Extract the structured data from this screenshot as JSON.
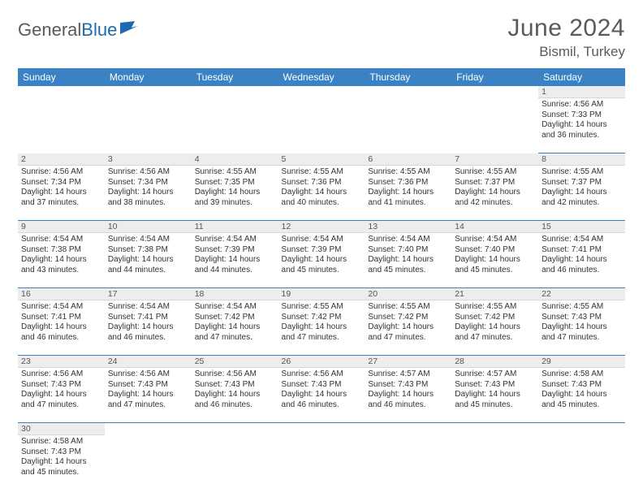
{
  "brand": {
    "part1": "General",
    "part2": "Blue"
  },
  "title": "June 2024",
  "location": "Bismil, Turkey",
  "colors": {
    "header_bg": "#3b82c4",
    "header_text": "#ffffff",
    "daynum_bg": "#ededed",
    "row_border": "#3b82c4",
    "text": "#333333",
    "title_color": "#5a5a5a"
  },
  "daysOfWeek": [
    "Sunday",
    "Monday",
    "Tuesday",
    "Wednesday",
    "Thursday",
    "Friday",
    "Saturday"
  ],
  "weeks": [
    [
      null,
      null,
      null,
      null,
      null,
      null,
      {
        "n": "1",
        "sr": "4:56 AM",
        "ss": "7:33 PM",
        "dl": "14 hours and 36 minutes."
      }
    ],
    [
      {
        "n": "2",
        "sr": "4:56 AM",
        "ss": "7:34 PM",
        "dl": "14 hours and 37 minutes."
      },
      {
        "n": "3",
        "sr": "4:56 AM",
        "ss": "7:34 PM",
        "dl": "14 hours and 38 minutes."
      },
      {
        "n": "4",
        "sr": "4:55 AM",
        "ss": "7:35 PM",
        "dl": "14 hours and 39 minutes."
      },
      {
        "n": "5",
        "sr": "4:55 AM",
        "ss": "7:36 PM",
        "dl": "14 hours and 40 minutes."
      },
      {
        "n": "6",
        "sr": "4:55 AM",
        "ss": "7:36 PM",
        "dl": "14 hours and 41 minutes."
      },
      {
        "n": "7",
        "sr": "4:55 AM",
        "ss": "7:37 PM",
        "dl": "14 hours and 42 minutes."
      },
      {
        "n": "8",
        "sr": "4:55 AM",
        "ss": "7:37 PM",
        "dl": "14 hours and 42 minutes."
      }
    ],
    [
      {
        "n": "9",
        "sr": "4:54 AM",
        "ss": "7:38 PM",
        "dl": "14 hours and 43 minutes."
      },
      {
        "n": "10",
        "sr": "4:54 AM",
        "ss": "7:38 PM",
        "dl": "14 hours and 44 minutes."
      },
      {
        "n": "11",
        "sr": "4:54 AM",
        "ss": "7:39 PM",
        "dl": "14 hours and 44 minutes."
      },
      {
        "n": "12",
        "sr": "4:54 AM",
        "ss": "7:39 PM",
        "dl": "14 hours and 45 minutes."
      },
      {
        "n": "13",
        "sr": "4:54 AM",
        "ss": "7:40 PM",
        "dl": "14 hours and 45 minutes."
      },
      {
        "n": "14",
        "sr": "4:54 AM",
        "ss": "7:40 PM",
        "dl": "14 hours and 45 minutes."
      },
      {
        "n": "15",
        "sr": "4:54 AM",
        "ss": "7:41 PM",
        "dl": "14 hours and 46 minutes."
      }
    ],
    [
      {
        "n": "16",
        "sr": "4:54 AM",
        "ss": "7:41 PM",
        "dl": "14 hours and 46 minutes."
      },
      {
        "n": "17",
        "sr": "4:54 AM",
        "ss": "7:41 PM",
        "dl": "14 hours and 46 minutes."
      },
      {
        "n": "18",
        "sr": "4:54 AM",
        "ss": "7:42 PM",
        "dl": "14 hours and 47 minutes."
      },
      {
        "n": "19",
        "sr": "4:55 AM",
        "ss": "7:42 PM",
        "dl": "14 hours and 47 minutes."
      },
      {
        "n": "20",
        "sr": "4:55 AM",
        "ss": "7:42 PM",
        "dl": "14 hours and 47 minutes."
      },
      {
        "n": "21",
        "sr": "4:55 AM",
        "ss": "7:42 PM",
        "dl": "14 hours and 47 minutes."
      },
      {
        "n": "22",
        "sr": "4:55 AM",
        "ss": "7:43 PM",
        "dl": "14 hours and 47 minutes."
      }
    ],
    [
      {
        "n": "23",
        "sr": "4:56 AM",
        "ss": "7:43 PM",
        "dl": "14 hours and 47 minutes."
      },
      {
        "n": "24",
        "sr": "4:56 AM",
        "ss": "7:43 PM",
        "dl": "14 hours and 47 minutes."
      },
      {
        "n": "25",
        "sr": "4:56 AM",
        "ss": "7:43 PM",
        "dl": "14 hours and 46 minutes."
      },
      {
        "n": "26",
        "sr": "4:56 AM",
        "ss": "7:43 PM",
        "dl": "14 hours and 46 minutes."
      },
      {
        "n": "27",
        "sr": "4:57 AM",
        "ss": "7:43 PM",
        "dl": "14 hours and 46 minutes."
      },
      {
        "n": "28",
        "sr": "4:57 AM",
        "ss": "7:43 PM",
        "dl": "14 hours and 45 minutes."
      },
      {
        "n": "29",
        "sr": "4:58 AM",
        "ss": "7:43 PM",
        "dl": "14 hours and 45 minutes."
      }
    ],
    [
      {
        "n": "30",
        "sr": "4:58 AM",
        "ss": "7:43 PM",
        "dl": "14 hours and 45 minutes."
      },
      null,
      null,
      null,
      null,
      null,
      null
    ]
  ],
  "labels": {
    "sunrise": "Sunrise:",
    "sunset": "Sunset:",
    "daylight": "Daylight:"
  }
}
